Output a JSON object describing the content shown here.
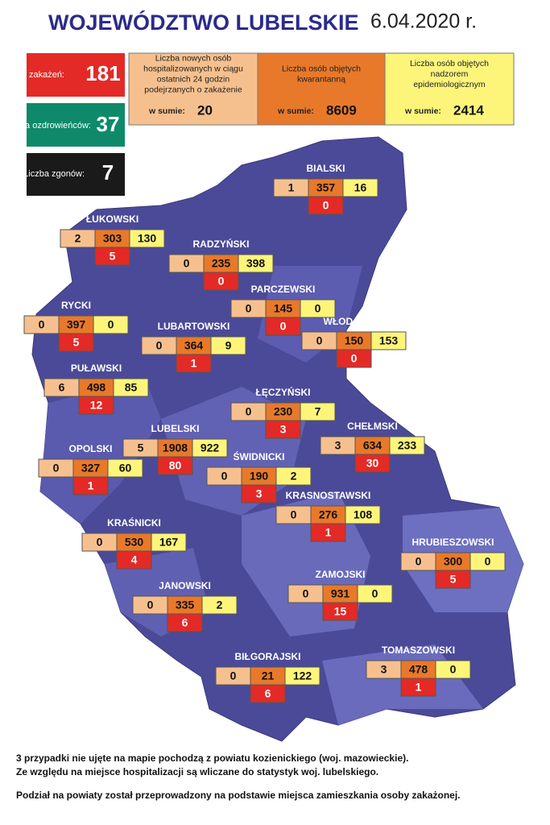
{
  "header": {
    "title": "WOJEWÓDZTWO LUBELSKIE",
    "date": "6.04.2020 r."
  },
  "summary": {
    "infected": {
      "label": "Liczba zakażeń:",
      "value": 181
    },
    "recovered": {
      "label": "Liczba ozdrowieńców:",
      "value": 37
    },
    "deaths": {
      "label": "Liczba zgonów:",
      "value": 7
    }
  },
  "stats": {
    "sum_label": "w sumie:",
    "hospitalized": {
      "label": "Liczba nowych osób hospitalizowanych w ciągu ostatnich 24 godzin podejrzanych o zakażenie",
      "value": 20
    },
    "quarantine": {
      "label": "Liczba osób objętych kwarantanną",
      "value": 8609
    },
    "surveillance": {
      "label": "Liczba osób objętych nadzorem epidemiologicznym",
      "value": 2414
    }
  },
  "districts": [
    {
      "name": "BIALSKI",
      "hospitalized": 1,
      "quarantine": 357,
      "surveillance": 16,
      "infected": 0
    },
    {
      "name": "ŁUKOWSKI",
      "hospitalized": 2,
      "quarantine": 303,
      "surveillance": 130,
      "infected": 5
    },
    {
      "name": "RADZYŃSKI",
      "hospitalized": 0,
      "quarantine": 235,
      "surveillance": 398,
      "infected": 0
    },
    {
      "name": "PARCZEWSKI",
      "hospitalized": 0,
      "quarantine": 145,
      "surveillance": 0,
      "infected": 0
    },
    {
      "name": "RYCKI",
      "hospitalized": 0,
      "quarantine": 397,
      "surveillance": 0,
      "infected": 5
    },
    {
      "name": "LUBARTOWSKI",
      "hospitalized": 0,
      "quarantine": 364,
      "surveillance": 9,
      "infected": 1
    },
    {
      "name": "WŁODAWSKI",
      "hospitalized": 0,
      "quarantine": 150,
      "surveillance": 153,
      "infected": 0
    },
    {
      "name": "PUŁAWSKI",
      "hospitalized": 6,
      "quarantine": 498,
      "surveillance": 85,
      "infected": 12
    },
    {
      "name": "ŁĘCZYŃSKI",
      "hospitalized": 0,
      "quarantine": 230,
      "surveillance": 7,
      "infected": 3
    },
    {
      "name": "CHEŁMSKI",
      "hospitalized": 3,
      "quarantine": 634,
      "surveillance": 233,
      "infected": 30
    },
    {
      "name": "LUBELSKI",
      "hospitalized": 5,
      "quarantine": 1908,
      "surveillance": 922,
      "infected": 80
    },
    {
      "name": "OPOLSKI",
      "hospitalized": 0,
      "quarantine": 327,
      "surveillance": 60,
      "infected": 1
    },
    {
      "name": "ŚWIDNICKI",
      "hospitalized": 0,
      "quarantine": 190,
      "surveillance": 2,
      "infected": 3
    },
    {
      "name": "KRASNOSTAWSKI",
      "hospitalized": 0,
      "quarantine": 276,
      "surveillance": 108,
      "infected": 1
    },
    {
      "name": "KRAŚNICKI",
      "hospitalized": 0,
      "quarantine": 530,
      "surveillance": 167,
      "infected": 4
    },
    {
      "name": "HRUBIESZOWSKI",
      "hospitalized": 0,
      "quarantine": 300,
      "surveillance": 0,
      "infected": 5
    },
    {
      "name": "ZAMOJSKI",
      "hospitalized": 0,
      "quarantine": 931,
      "surveillance": 0,
      "infected": 15
    },
    {
      "name": "JANOWSKI",
      "hospitalized": 0,
      "quarantine": 335,
      "surveillance": 2,
      "infected": 6
    },
    {
      "name": "BIŁGORAJSKI",
      "hospitalized": 0,
      "quarantine": 21,
      "surveillance": 122,
      "infected": 6
    },
    {
      "name": "TOMASZOWSKI",
      "hospitalized": 3,
      "quarantine": 478,
      "surveillance": 0,
      "infected": 1
    }
  ],
  "footer": {
    "note1": "3 przypadki nie ujęte na mapie pochodzą z powiatu kozienickiego (woj. mazowieckie).",
    "note2": "Ze względu na miejsce hospitalizacji są wliczane do statystyk woj. lubelskiego.",
    "note3": "Podział na powiaty został przeprowadzony na podstawie miejsca zamieszkania osoby zakażonej."
  }
}
